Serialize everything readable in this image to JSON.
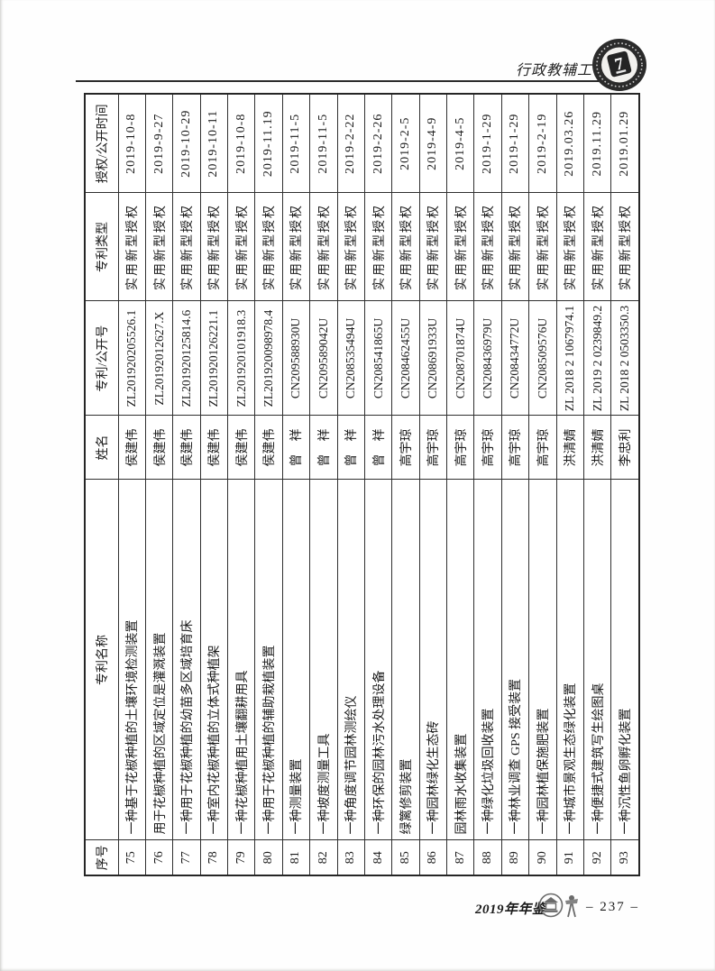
{
  "header": {
    "section_title": "行政教辅工作",
    "seal_numeral": "7"
  },
  "footer": {
    "yearbook": "2019年年鉴",
    "page_number": "– 237 –"
  },
  "table": {
    "headers": {
      "serial": "序号",
      "patent_name": "专利名称",
      "inventor": "姓名",
      "number": "专利/公开号",
      "type": "专利类型",
      "date": "授权/公开时间"
    },
    "rows": [
      {
        "serial": "75",
        "patent_name": "一种基于花椒种植的土壤环境检测装置",
        "inventor": "侯建伟",
        "number": "ZL201920205526.1",
        "type": "实用新型授权",
        "date": "2019-10-8"
      },
      {
        "serial": "76",
        "patent_name": "用于花椒种植的区域定位是灌溉装置",
        "inventor": "侯建伟",
        "number": "ZL20192012627.X",
        "type": "实用新型授权",
        "date": "2019-9-27"
      },
      {
        "serial": "77",
        "patent_name": "一种用于花椒种植的幼苗多区域培育床",
        "inventor": "侯建伟",
        "number": "ZL201920125814.6",
        "type": "实用新型授权",
        "date": "2019-10-29"
      },
      {
        "serial": "78",
        "patent_name": "一种室内花椒种植的立体式种植架",
        "inventor": "侯建伟",
        "number": "ZL201920126221.1",
        "type": "实用新型授权",
        "date": "2019-10-11"
      },
      {
        "serial": "79",
        "patent_name": "一种花椒种植用土壤翻耕用具",
        "inventor": "侯建伟",
        "number": "ZL201920101918.3",
        "type": "实用新型授权",
        "date": "2019-10-8"
      },
      {
        "serial": "80",
        "patent_name": "一种用于花椒种植的辅助栽植装置",
        "inventor": "侯建伟",
        "number": "ZL201920098978.4",
        "type": "实用新型授权",
        "date": "2019-11.19"
      },
      {
        "serial": "81",
        "patent_name": "一种测量装置",
        "inventor": "曾　祥",
        "number": "CN209588930U",
        "type": "实用新型授权",
        "date": "2019-11-5"
      },
      {
        "serial": "82",
        "patent_name": "一种坡度测量工具",
        "inventor": "曾　祥",
        "number": "CN209589042U",
        "type": "实用新型授权",
        "date": "2019-11-5"
      },
      {
        "serial": "83",
        "patent_name": "一种角度调节园林测绘仪",
        "inventor": "曾　祥",
        "number": "CN208535494U",
        "type": "实用新型授权",
        "date": "2019-2-22"
      },
      {
        "serial": "84",
        "patent_name": "一种环保的园林污水处理设备",
        "inventor": "曾　祥",
        "number": "CN208541865U",
        "type": "实用新型授权",
        "date": "2019-2-26"
      },
      {
        "serial": "85",
        "patent_name": "绿篱修剪装置",
        "inventor": "高宇琼",
        "number": "CN208462455U",
        "type": "实用新型授权",
        "date": "2019-2-5"
      },
      {
        "serial": "86",
        "patent_name": "一种园林绿化生态砖",
        "inventor": "高宇琼",
        "number": "CN208691933U",
        "type": "实用新型授权",
        "date": "2019-4-9"
      },
      {
        "serial": "87",
        "patent_name": "园林雨水收集装置",
        "inventor": "高宇琼",
        "number": "CN208701874U",
        "type": "实用新型授权",
        "date": "2019-4-5"
      },
      {
        "serial": "88",
        "patent_name": "一种绿化垃圾回收装置",
        "inventor": "高宇琼",
        "number": "CN208436979U",
        "type": "实用新型授权",
        "date": "2019-1-29"
      },
      {
        "serial": "89",
        "patent_name": "一种林业调查 GPS 接受装置",
        "inventor": "高宇琼",
        "number": "CN208434772U",
        "type": "实用新型授权",
        "date": "2019-1-29"
      },
      {
        "serial": "90",
        "patent_name": "一种园林植保施肥装置",
        "inventor": "高宇琼",
        "number": "CN208509576U",
        "type": "实用新型授权",
        "date": "2019-2-19"
      },
      {
        "serial": "91",
        "patent_name": "一种城市景观生态绿化装置",
        "inventor": "洪清婧",
        "number": "ZL 2018 2 1067974.1",
        "type": "实用新型授权",
        "date": "2019.03.26"
      },
      {
        "serial": "92",
        "patent_name": "一种便捷式建筑写生绘图桌",
        "inventor": "洪清婧",
        "number": "ZL 2019 2 0239849.2",
        "type": "实用新型授权",
        "date": "2019.11.29"
      },
      {
        "serial": "93",
        "patent_name": "一种沉性鱼卵孵化装置",
        "inventor": "李忠利",
        "number": "ZL 2018 2 0503350.3",
        "type": "实用新型授权",
        "date": "2019.01.29"
      }
    ]
  }
}
